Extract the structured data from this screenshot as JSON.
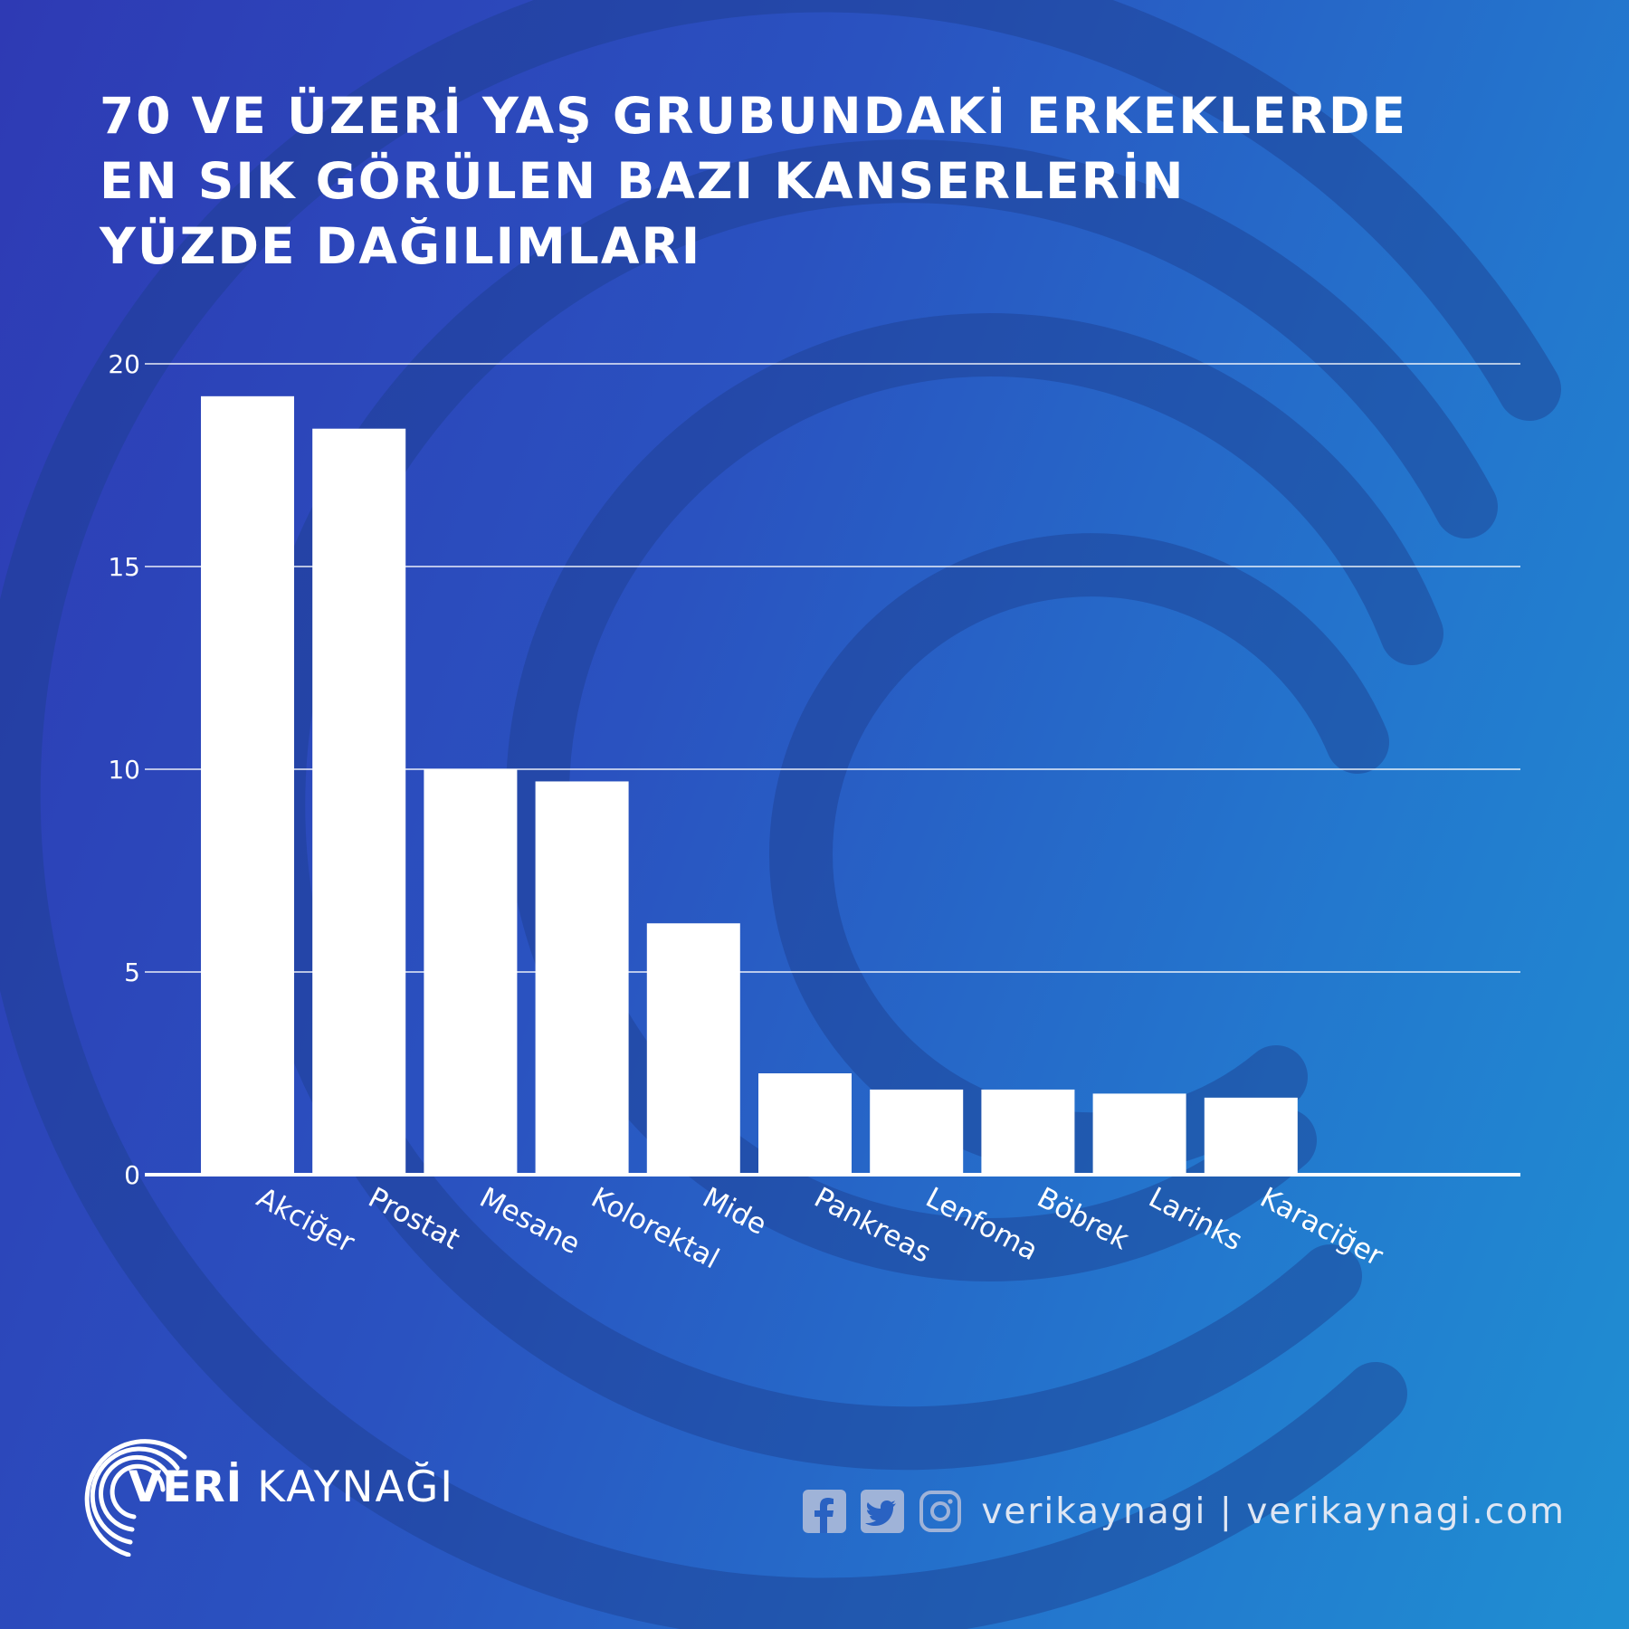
{
  "title_lines": [
    "70 VE ÜZERİ YAŞ GRUBUNDAKİ ERKEKLERDE",
    "EN SIK GÖRÜLEN BAZI KANSERLERİN",
    "YÜZDE DAĞILIMLARI"
  ],
  "chart_data": {
    "type": "bar",
    "categories": [
      "Akciğer",
      "Prostat",
      "Mesane",
      "Kolorektal",
      "Mide",
      "Pankreas",
      "Lenfoma",
      "Böbrek",
      "Larinks",
      "Karaciğer"
    ],
    "values": [
      19.2,
      18.4,
      10.0,
      9.7,
      6.2,
      2.5,
      2.1,
      2.1,
      2.0,
      1.9
    ],
    "yticks": [
      0,
      5,
      10,
      15,
      20
    ],
    "ylim": [
      0,
      20
    ],
    "grid": true,
    "bar_color": "#ffffff",
    "title": "70 VE ÜZERİ YAŞ GRUBUNDAKİ ERKEKLERDE EN SIK GÖRÜLEN BAZI KANSERLERİN YÜZDE DAĞILIMLARI",
    "xlabel": "",
    "ylabel": ""
  },
  "brand": {
    "name_bold": "VERİ",
    "name_rest": "KAYNAĞI"
  },
  "social": {
    "icons": [
      "facebook-icon",
      "twitter-icon",
      "instagram-icon"
    ],
    "handle": "verikaynagi | verikaynagi.com"
  },
  "colors": {
    "background_start": "#2e3ab4",
    "background_end": "#1f8fd2",
    "text": "#ffffff"
  }
}
